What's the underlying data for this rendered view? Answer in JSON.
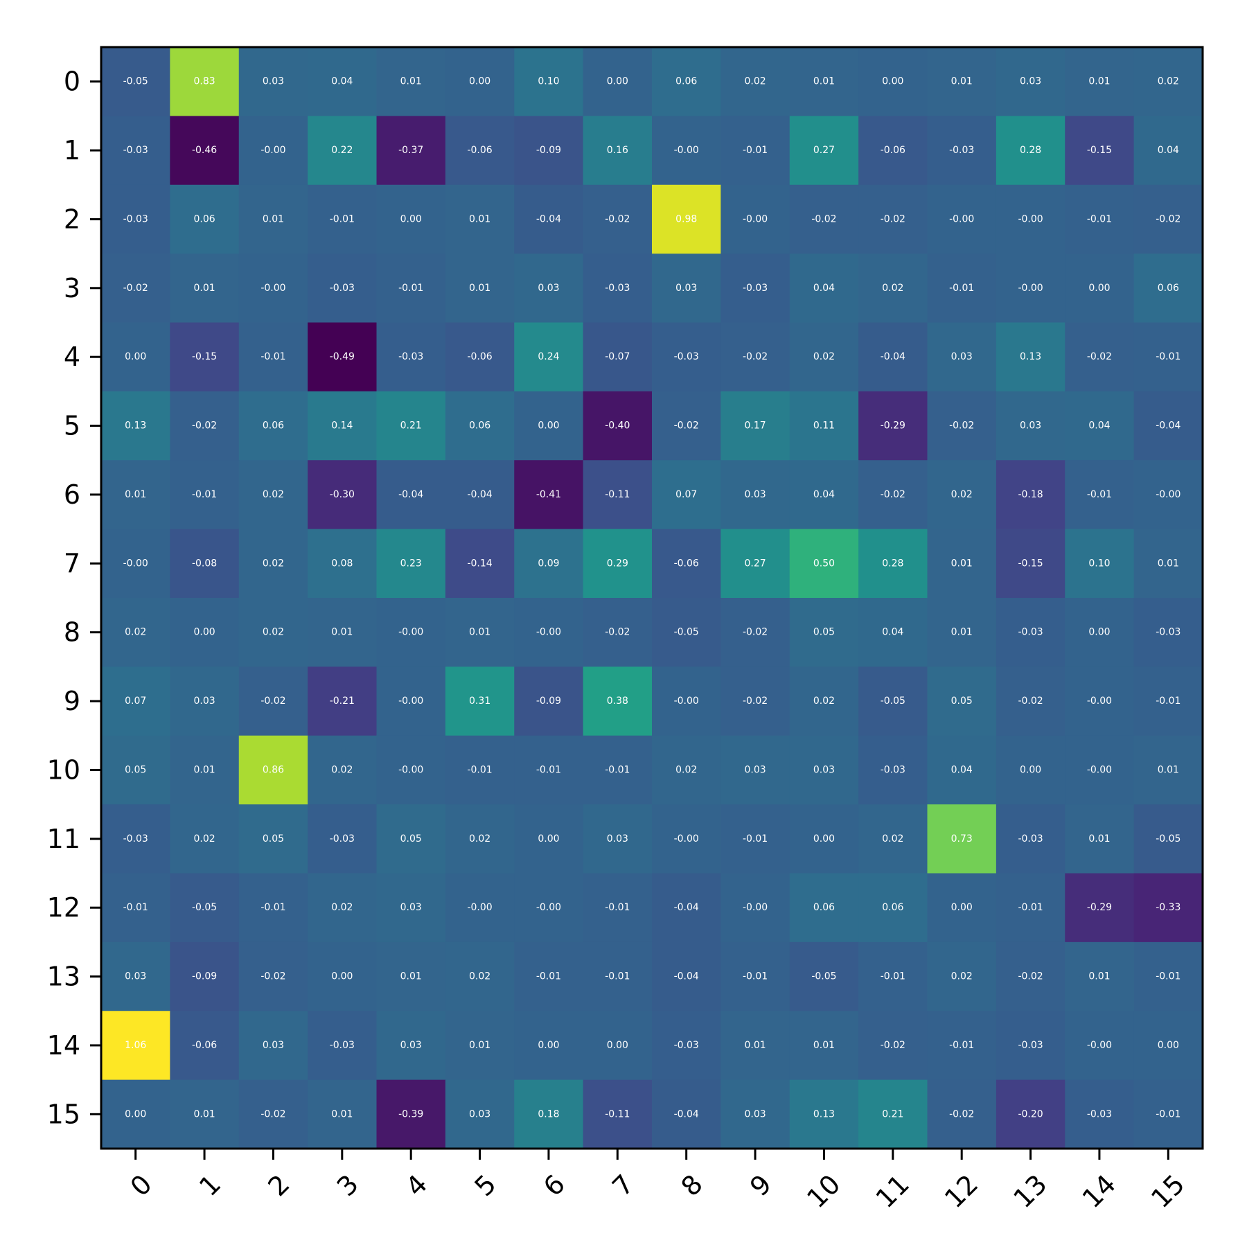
{
  "chart_data": {
    "type": "heatmap",
    "title": "",
    "xlabel": "",
    "ylabel": "",
    "colormap": "viridis",
    "vmin": -0.49,
    "vmax": 1.06,
    "x_labels": [
      "0",
      "1",
      "2",
      "3",
      "4",
      "5",
      "6",
      "7",
      "8",
      "9",
      "10",
      "11",
      "12",
      "13",
      "14",
      "15"
    ],
    "y_labels": [
      "0",
      "1",
      "2",
      "3",
      "4",
      "5",
      "6",
      "7",
      "8",
      "9",
      "10",
      "11",
      "12",
      "13",
      "14",
      "15"
    ],
    "values": [
      [
        -0.05,
        0.83,
        0.03,
        0.04,
        0.01,
        0.0,
        0.1,
        0.0,
        0.06,
        0.02,
        0.01,
        0.0,
        0.01,
        0.03,
        0.01,
        0.02
      ],
      [
        -0.03,
        -0.46,
        -0.0,
        0.22,
        -0.37,
        -0.06,
        -0.09,
        0.16,
        -0.0,
        -0.01,
        0.27,
        -0.06,
        -0.03,
        0.28,
        -0.15,
        0.04
      ],
      [
        -0.03,
        0.06,
        0.01,
        -0.01,
        0.0,
        0.01,
        -0.04,
        -0.02,
        0.98,
        -0.0,
        -0.02,
        -0.02,
        -0.0,
        -0.0,
        -0.01,
        -0.02
      ],
      [
        -0.02,
        0.01,
        -0.0,
        -0.03,
        -0.01,
        0.01,
        0.03,
        -0.03,
        0.03,
        -0.03,
        0.04,
        0.02,
        -0.01,
        -0.0,
        0.0,
        0.06
      ],
      [
        0.0,
        -0.15,
        -0.01,
        -0.49,
        -0.03,
        -0.06,
        0.24,
        -0.07,
        -0.03,
        -0.02,
        0.02,
        -0.04,
        0.03,
        0.13,
        -0.02,
        -0.01
      ],
      [
        0.13,
        -0.02,
        0.06,
        0.14,
        0.21,
        0.06,
        0.0,
        -0.4,
        -0.02,
        0.17,
        0.11,
        -0.29,
        -0.02,
        0.03,
        0.04,
        -0.04
      ],
      [
        0.01,
        -0.01,
        0.02,
        -0.3,
        -0.04,
        -0.04,
        -0.41,
        -0.11,
        0.07,
        0.03,
        0.04,
        -0.02,
        0.02,
        -0.18,
        -0.01,
        -0.0
      ],
      [
        -0.0,
        -0.08,
        0.02,
        0.08,
        0.23,
        -0.14,
        0.09,
        0.29,
        -0.06,
        0.27,
        0.5,
        0.28,
        0.01,
        -0.15,
        0.1,
        0.01
      ],
      [
        0.02,
        0.0,
        0.02,
        0.01,
        -0.0,
        0.01,
        -0.0,
        -0.02,
        -0.05,
        -0.02,
        0.05,
        0.04,
        0.01,
        -0.03,
        0.0,
        -0.03
      ],
      [
        0.07,
        0.03,
        -0.02,
        -0.21,
        -0.0,
        0.31,
        -0.09,
        0.38,
        -0.0,
        -0.02,
        0.02,
        -0.05,
        0.05,
        -0.02,
        -0.0,
        -0.01
      ],
      [
        0.05,
        0.01,
        0.86,
        0.02,
        -0.0,
        -0.01,
        -0.01,
        -0.01,
        0.02,
        0.03,
        0.03,
        -0.03,
        0.04,
        0.0,
        -0.0,
        0.01
      ],
      [
        -0.03,
        0.02,
        0.05,
        -0.03,
        0.05,
        0.02,
        0.0,
        0.03,
        -0.0,
        -0.01,
        0.0,
        0.02,
        0.73,
        -0.03,
        0.01,
        -0.05
      ],
      [
        -0.01,
        -0.05,
        -0.01,
        0.02,
        0.03,
        -0.0,
        -0.0,
        -0.01,
        -0.04,
        -0.0,
        0.06,
        0.06,
        0.0,
        -0.01,
        -0.29,
        -0.33
      ],
      [
        0.03,
        -0.09,
        -0.02,
        0.0,
        0.01,
        0.02,
        -0.01,
        -0.01,
        -0.04,
        -0.01,
        -0.05,
        -0.01,
        0.02,
        -0.02,
        0.01,
        -0.01
      ],
      [
        1.06,
        -0.06,
        0.03,
        -0.03,
        0.03,
        0.01,
        0.0,
        0.0,
        -0.03,
        0.01,
        0.01,
        -0.02,
        -0.01,
        -0.03,
        -0.0,
        0.0
      ],
      [
        0.0,
        0.01,
        -0.02,
        0.01,
        -0.39,
        0.03,
        0.18,
        -0.11,
        -0.04,
        0.03,
        0.13,
        0.21,
        -0.02,
        -0.2,
        -0.03,
        -0.01
      ]
    ],
    "cell_labels": [
      [
        "-0.05",
        "0.83",
        "0.03",
        "0.04",
        "0.01",
        "0.00",
        "0.10",
        "0.00",
        "0.06",
        "0.02",
        "0.01",
        "0.00",
        "0.01",
        "0.03",
        "0.01",
        "0.02"
      ],
      [
        "-0.03",
        "-0.46",
        "-0.00",
        "0.22",
        "-0.37",
        "-0.06",
        "-0.09",
        "0.16",
        "-0.00",
        "-0.01",
        "0.27",
        "-0.06",
        "-0.03",
        "0.28",
        "-0.15",
        "0.04"
      ],
      [
        "-0.03",
        "0.06",
        "0.01",
        "-0.01",
        "0.00",
        "0.01",
        "-0.04",
        "-0.02",
        "0.98",
        "-0.00",
        "-0.02",
        "-0.02",
        "-0.00",
        "-0.00",
        "-0.01",
        "-0.02"
      ],
      [
        "-0.02",
        "0.01",
        "-0.00",
        "-0.03",
        "-0.01",
        "0.01",
        "0.03",
        "-0.03",
        "0.03",
        "-0.03",
        "0.04",
        "0.02",
        "-0.01",
        "-0.00",
        "0.00",
        "0.06"
      ],
      [
        "0.00",
        "-0.15",
        "-0.01",
        "-0.49",
        "-0.03",
        "-0.06",
        "0.24",
        "-0.07",
        "-0.03",
        "-0.02",
        "0.02",
        "-0.04",
        "0.03",
        "0.13",
        "-0.02",
        "-0.01"
      ],
      [
        "0.13",
        "-0.02",
        "0.06",
        "0.14",
        "0.21",
        "0.06",
        "0.00",
        "-0.40",
        "-0.02",
        "0.17",
        "0.11",
        "-0.29",
        "-0.02",
        "0.03",
        "0.04",
        "-0.04"
      ],
      [
        "0.01",
        "-0.01",
        "0.02",
        "-0.30",
        "-0.04",
        "-0.04",
        "-0.41",
        "-0.11",
        "0.07",
        "0.03",
        "0.04",
        "-0.02",
        "0.02",
        "-0.18",
        "-0.01",
        "-0.00"
      ],
      [
        "-0.00",
        "-0.08",
        "0.02",
        "0.08",
        "0.23",
        "-0.14",
        "0.09",
        "0.29",
        "-0.06",
        "0.27",
        "0.50",
        "0.28",
        "0.01",
        "-0.15",
        "0.10",
        "0.01"
      ],
      [
        "0.02",
        "0.00",
        "0.02",
        "0.01",
        "-0.00",
        "0.01",
        "-0.00",
        "-0.02",
        "-0.05",
        "-0.02",
        "0.05",
        "0.04",
        "0.01",
        "-0.03",
        "0.00",
        "-0.03"
      ],
      [
        "0.07",
        "0.03",
        "-0.02",
        "-0.21",
        "-0.00",
        "0.31",
        "-0.09",
        "0.38",
        "-0.00",
        "-0.02",
        "0.02",
        "-0.05",
        "0.05",
        "-0.02",
        "-0.00",
        "-0.01"
      ],
      [
        "0.05",
        "0.01",
        "0.86",
        "0.02",
        "-0.00",
        "-0.01",
        "-0.01",
        "-0.01",
        "0.02",
        "0.03",
        "0.03",
        "-0.03",
        "0.04",
        "0.00",
        "-0.00",
        "0.01"
      ],
      [
        "-0.03",
        "0.02",
        "0.05",
        "-0.03",
        "0.05",
        "0.02",
        "0.00",
        "0.03",
        "-0.00",
        "-0.01",
        "0.00",
        "0.02",
        "0.73",
        "-0.03",
        "0.01",
        "-0.05"
      ],
      [
        "-0.01",
        "-0.05",
        "-0.01",
        "0.02",
        "0.03",
        "-0.00",
        "-0.00",
        "-0.01",
        "-0.04",
        "-0.00",
        "0.06",
        "0.06",
        "0.00",
        "-0.01",
        "-0.29",
        "-0.33"
      ],
      [
        "0.03",
        "-0.09",
        "-0.02",
        "0.00",
        "0.01",
        "0.02",
        "-0.01",
        "-0.01",
        "-0.04",
        "-0.01",
        "-0.05",
        "-0.01",
        "0.02",
        "-0.02",
        "0.01",
        "-0.01"
      ],
      [
        "1.06",
        "-0.06",
        "0.03",
        "-0.03",
        "0.03",
        "0.01",
        "0.00",
        "0.00",
        "-0.03",
        "0.01",
        "0.01",
        "-0.02",
        "-0.01",
        "-0.03",
        "-0.00",
        "0.00"
      ],
      [
        "0.00",
        "0.01",
        "-0.02",
        "0.01",
        "-0.39",
        "0.03",
        "0.18",
        "-0.11",
        "-0.04",
        "0.03",
        "0.13",
        "0.21",
        "-0.02",
        "-0.20",
        "-0.03",
        "-0.01"
      ]
    ],
    "colorbar": false,
    "grid": false
  }
}
